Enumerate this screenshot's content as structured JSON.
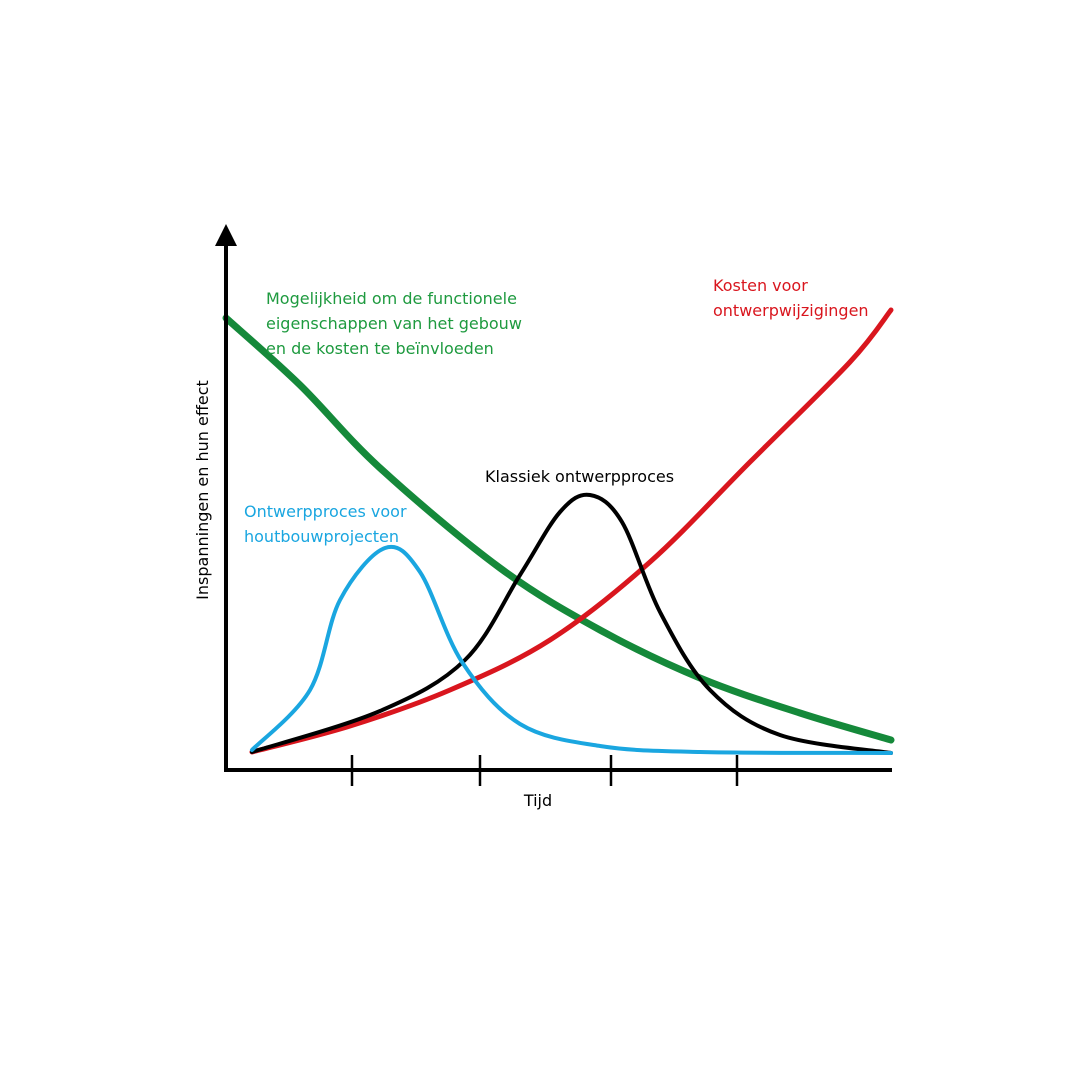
{
  "labels": {
    "green": [
      "Mogelijkheid om de functionele",
      "eigenschappen van het gebouw",
      "en de kosten te beïnvloeden"
    ],
    "red": [
      "Kosten voor",
      "ontwerpwijzigingen"
    ],
    "black": [
      "Klassiek ontwerpproces"
    ],
    "blue": [
      "Ontwerpproces voor",
      "houtbouwprojecten"
    ]
  },
  "y_axis_label": "Inspanningen en hun effect",
  "x_axis_label": "Tijd"
}
